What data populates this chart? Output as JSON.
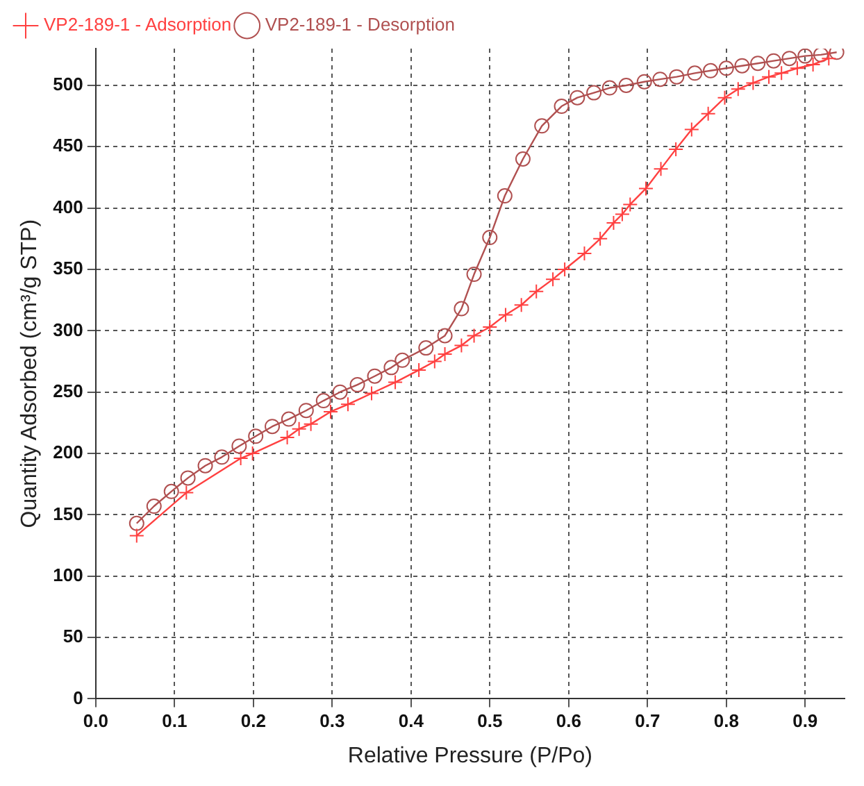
{
  "chart_data": {
    "type": "line",
    "xlabel": "Relative Pressure (P/Po)",
    "ylabel": "Quantity Adsorbed (cm³/g STP)",
    "xlim": [
      0,
      0.95
    ],
    "xticks": [
      {
        "value": 0,
        "label": "0.0"
      },
      0.1,
      0.2,
      0.3,
      0.4,
      0.5,
      0.6,
      0.7,
      0.8,
      0.9
    ],
    "ylim": [
      0,
      530
    ],
    "yticks": [
      0,
      50,
      100,
      150,
      200,
      250,
      300,
      350,
      400,
      450,
      500
    ],
    "grid": true,
    "legend": "top left",
    "line_style": "solid",
    "series": [
      {
        "name": "VP2-189-1 - Adsorption",
        "color": "#ff4040",
        "marker": "cross",
        "x": [
          0.052,
          0.115,
          0.184,
          0.199,
          0.243,
          0.258,
          0.273,
          0.298,
          0.32,
          0.35,
          0.38,
          0.41,
          0.43,
          0.443,
          0.464,
          0.48,
          0.5,
          0.52,
          0.54,
          0.559,
          0.58,
          0.595,
          0.62,
          0.64,
          0.657,
          0.668,
          0.678,
          0.698,
          0.717,
          0.736,
          0.756,
          0.777,
          0.798,
          0.815,
          0.834,
          0.854,
          0.87,
          0.89,
          0.91,
          0.93
        ],
        "values": [
          133,
          168,
          196,
          200,
          213,
          220,
          224,
          234,
          240,
          249,
          258,
          268,
          275,
          281,
          288,
          296,
          303,
          313,
          321,
          332,
          342,
          350,
          363,
          375,
          388,
          395,
          403,
          416,
          432,
          448,
          464,
          477,
          490,
          497,
          502,
          507,
          510,
          514,
          517,
          522
        ]
      },
      {
        "name": "VP2-189-1 - Desorption",
        "color": "#b05050",
        "marker": "circle",
        "x": [
          0.052,
          0.074,
          0.096,
          0.117,
          0.139,
          0.16,
          0.182,
          0.203,
          0.224,
          0.245,
          0.267,
          0.289,
          0.31,
          0.332,
          0.354,
          0.375,
          0.389,
          0.419,
          0.443,
          0.464,
          0.48,
          0.5,
          0.519,
          0.542,
          0.566,
          0.591,
          0.611,
          0.632,
          0.652,
          0.673,
          0.696,
          0.716,
          0.737,
          0.76,
          0.78,
          0.8,
          0.82,
          0.84,
          0.86,
          0.88,
          0.9,
          0.92,
          0.94
        ],
        "values": [
          143,
          157,
          169,
          180,
          190,
          197,
          206,
          214,
          222,
          228,
          235,
          243,
          250,
          256,
          263,
          270,
          276,
          286,
          296,
          318,
          346,
          376,
          410,
          440,
          467,
          483,
          490,
          494,
          498,
          500,
          503,
          505,
          507,
          510,
          512,
          514,
          516,
          518,
          520,
          522,
          524,
          525,
          527
        ]
      }
    ]
  }
}
